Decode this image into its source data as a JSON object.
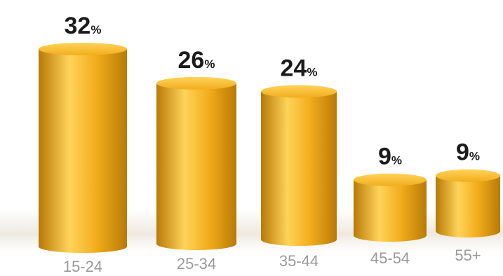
{
  "chart_data": {
    "type": "bar",
    "categories": [
      "15-24",
      "25-34",
      "35-44",
      "45-54",
      "55+"
    ],
    "values": [
      32,
      26,
      24,
      9,
      9
    ],
    "value_suffix": "%",
    "title": "",
    "xlabel": "",
    "ylabel": "",
    "ylim": [
      0,
      32
    ],
    "grid": false,
    "legend": "none",
    "bar_style": "3d-cylinder"
  },
  "colors": {
    "bar_main": "#f2ad1c",
    "bar_highlight": "#ffd35a",
    "bar_shadow": "#b87a06",
    "value_text": "#1b1b1b",
    "category_text": "#9a9a9a"
  }
}
